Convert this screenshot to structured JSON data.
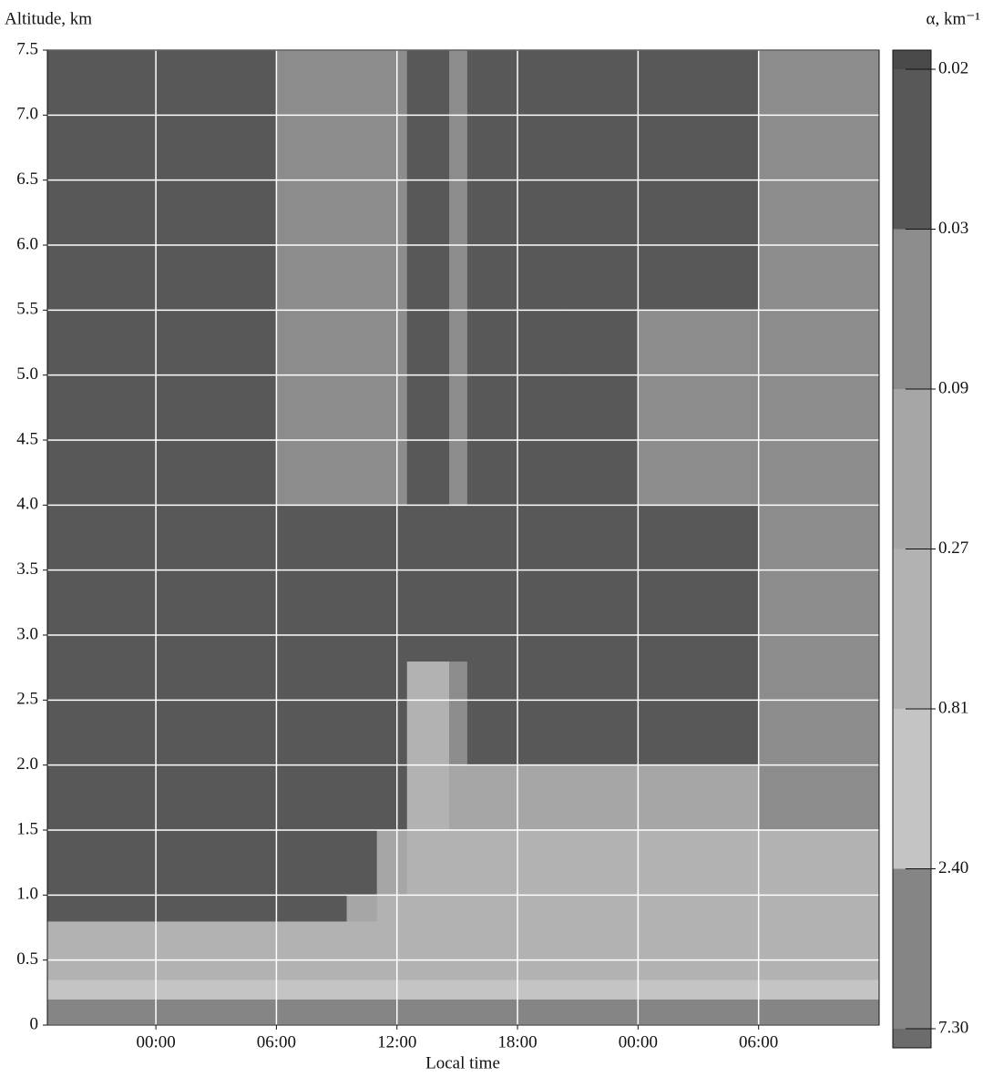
{
  "chart_data": {
    "type": "heatmap",
    "y_label": "Altitude, km",
    "x_label": "Local time",
    "colorbar_label": "α, km⁻¹",
    "xlim": [
      -5.4,
      36
    ],
    "ylim": [
      0,
      7.5
    ],
    "xticks": [
      {
        "value": 0,
        "label": "00:00"
      },
      {
        "value": 6,
        "label": "06:00"
      },
      {
        "value": 12,
        "label": "12:00"
      },
      {
        "value": 18,
        "label": "18:00"
      },
      {
        "value": 24,
        "label": "00:00"
      },
      {
        "value": 30,
        "label": "06:00"
      }
    ],
    "yticks": [
      0,
      0.5,
      {
        "value": 1,
        "label": "1.0"
      },
      1.5,
      {
        "value": 2,
        "label": "2.0"
      },
      2.5,
      {
        "value": 3,
        "label": "3.0"
      },
      3.5,
      {
        "value": 4,
        "label": "4.0"
      },
      4.5,
      {
        "value": 5,
        "label": "5.0"
      },
      5.5,
      {
        "value": 6,
        "label": "6.0"
      },
      6.5,
      {
        "value": 7,
        "label": "7.0"
      },
      7.5
    ],
    "grid": true,
    "grid_color": "#ffffff",
    "x_edges": [
      -5.4,
      0,
      6,
      9.5,
      11,
      12.5,
      14.6,
      15.5,
      17,
      20.5,
      24,
      30,
      36
    ],
    "y_edges": [
      0,
      0.2,
      0.35,
      0.8,
      1.0,
      1.5,
      2.0,
      2.8,
      4.0,
      5.5,
      7.5
    ],
    "z": [
      [
        5,
        5,
        5,
        5,
        5,
        5,
        5,
        5,
        5,
        5,
        5,
        5
      ],
      [
        1.5,
        1.5,
        1.5,
        1.5,
        1.5,
        1.5,
        1.5,
        1.5,
        1.5,
        1.5,
        1.5,
        1.5
      ],
      [
        0.5,
        0.5,
        0.5,
        0.5,
        0.5,
        0.5,
        0.5,
        0.5,
        0.5,
        0.6,
        0.6,
        0.5
      ],
      [
        0.025,
        0.025,
        0.025,
        0.15,
        0.5,
        0.5,
        0.5,
        0.5,
        0.5,
        0.6,
        0.6,
        0.5
      ],
      [
        0.025,
        0.025,
        0.025,
        0.025,
        0.15,
        0.5,
        0.5,
        0.5,
        0.3,
        0.4,
        0.4,
        0.3
      ],
      [
        0.025,
        0.025,
        0.025,
        0.025,
        0.025,
        0.5,
        0.15,
        0.1,
        0.1,
        0.15,
        0.1,
        0.04
      ],
      [
        0.025,
        0.025,
        0.025,
        0.025,
        0.025,
        0.3,
        0.05,
        0.025,
        0.025,
        0.025,
        0.025,
        0.03
      ],
      [
        0.025,
        0.025,
        0.025,
        0.025,
        0.025,
        0.025,
        0.025,
        0.025,
        0.025,
        0.025,
        0.025,
        0.04
      ],
      [
        0.025,
        0.025,
        0.05,
        0.05,
        0.05,
        0.025,
        0.05,
        0.025,
        0.025,
        0.025,
        0.035,
        0.05
      ],
      [
        0.025,
        0.025,
        0.05,
        0.05,
        0.05,
        0.025,
        0.05,
        0.025,
        0.025,
        0.025,
        0.025,
        0.05
      ]
    ],
    "colorbar_levels": [
      0.02,
      0.03,
      0.09,
      0.27,
      0.81,
      {
        "value": 2.4,
        "label": "2.40"
      },
      {
        "value": 7.3,
        "label": "7.30"
      }
    ],
    "colorbar_colors": [
      "#4a4a4a",
      "#585858",
      "#8c8c8c",
      "#a6a6a6",
      "#b2b2b2",
      "#c4c4c4",
      "#858585",
      "#6c6c6c"
    ]
  }
}
